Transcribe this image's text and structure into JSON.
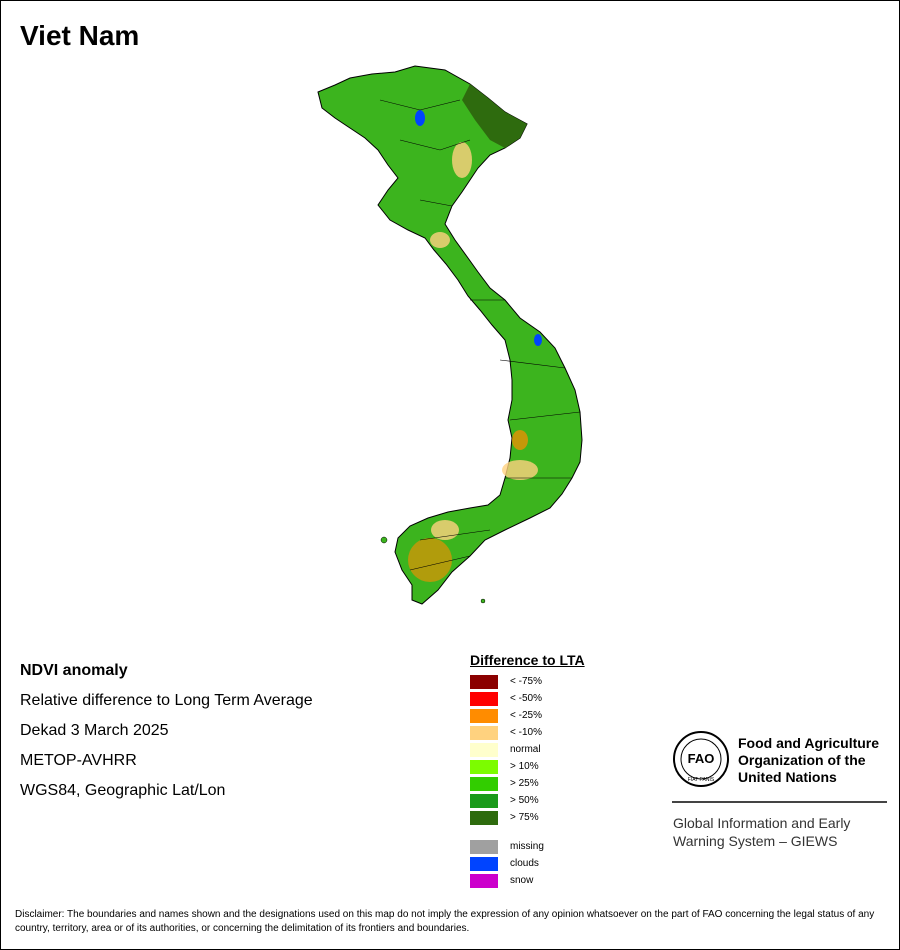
{
  "title": "Viet Nam",
  "info": {
    "product": "NDVI anomaly",
    "description": "Relative difference to Long Term Average",
    "period": "Dekad 3 March 2025",
    "sensor": "METOP-AVHRR",
    "projection": "WGS84, Geographic Lat/Lon"
  },
  "legend": {
    "title": "Difference to LTA",
    "classes": [
      {
        "label": "< -75%",
        "color": "#8b0000"
      },
      {
        "label": "< -50%",
        "color": "#ff0000"
      },
      {
        "label": "< -25%",
        "color": "#ff8c00"
      },
      {
        "label": "< -10%",
        "color": "#ffd27f"
      },
      {
        "label": "normal",
        "color": "#ffffcc"
      },
      {
        "label": "> 10%",
        "color": "#7cfc00"
      },
      {
        "label": "> 25%",
        "color": "#32cd00"
      },
      {
        "label": "> 50%",
        "color": "#1a9a1a"
      },
      {
        "label": "> 75%",
        "color": "#2e6b0e"
      }
    ],
    "extras": [
      {
        "label": "missing",
        "color": "#a0a0a0"
      },
      {
        "label": "clouds",
        "color": "#0044ff"
      },
      {
        "label": "snow",
        "color": "#cc00cc"
      }
    ]
  },
  "organization": {
    "logo_text": "FAO",
    "logo_motto": "FIAT PANIS",
    "name": "Food and Agriculture Organization of the United Nations",
    "system": "Global Information and Early Warning System – GIEWS"
  },
  "disclaimer": "Disclaimer: The boundaries and names shown and the designations used on this map do not imply the expression of any opinion whatsoever on the part of FAO concerning the legal status of any country, territory, area or of its authorities, or concerning the delimitation of its frontiers and boundaries."
}
